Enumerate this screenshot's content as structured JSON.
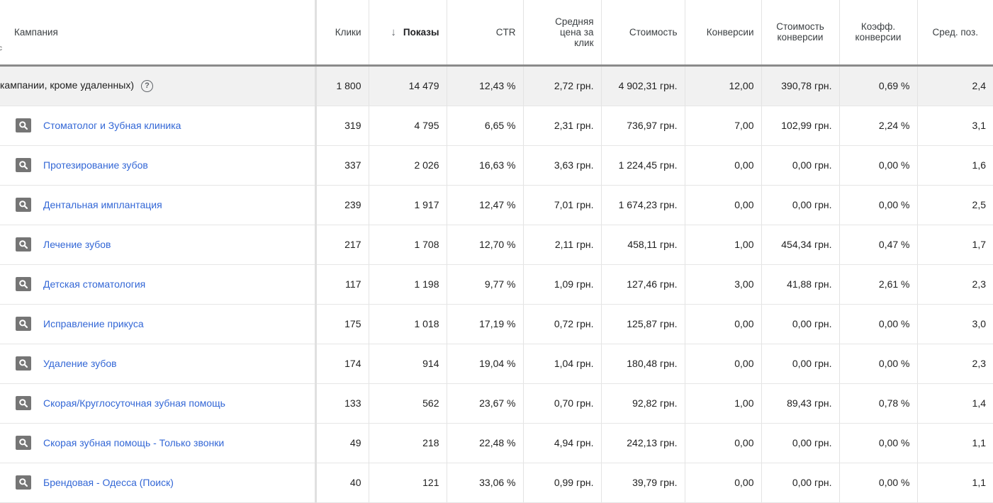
{
  "header": {
    "campaign": "Кампания",
    "clicks": "Клики",
    "impressions": "Показы",
    "ctr": "CTR",
    "avg_cpc": [
      "Средняя",
      "цена за",
      "клик"
    ],
    "cost": "Стоимость",
    "conversions": "Конверсии",
    "cost_per_conv": [
      "Стоимость",
      "конверсии"
    ],
    "conv_rate": [
      "Коэфф.",
      "конверсии"
    ],
    "avg_pos": "Сред. поз.",
    "sort_icon": "arrow-down-icon"
  },
  "total": {
    "label": "кампании, кроме удаленных)",
    "help_icon": "help-circle-icon",
    "clicks": "1 800",
    "impressions": "14 479",
    "ctr": "12,43 %",
    "avg_cpc": "2,72 грн.",
    "cost": "4 902,31 грн.",
    "conversions": "12,00",
    "cost_per_conv": "390,78 грн.",
    "conv_rate": "0,69 %",
    "avg_pos": "2,4"
  },
  "rows": [
    {
      "name": "Стоматолог и Зубная клиника",
      "clicks": "319",
      "impressions": "4 795",
      "ctr": "6,65 %",
      "avg_cpc": "2,31 грн.",
      "cost": "736,97 грн.",
      "conversions": "7,00",
      "cost_per_conv": "102,99 грн.",
      "conv_rate": "2,24 %",
      "avg_pos": "3,1"
    },
    {
      "name": "Протезирование зубов",
      "clicks": "337",
      "impressions": "2 026",
      "ctr": "16,63 %",
      "avg_cpc": "3,63 грн.",
      "cost": "1 224,45 грн.",
      "conversions": "0,00",
      "cost_per_conv": "0,00 грн.",
      "conv_rate": "0,00 %",
      "avg_pos": "1,6"
    },
    {
      "name": "Дентальная имплантация",
      "clicks": "239",
      "impressions": "1 917",
      "ctr": "12,47 %",
      "avg_cpc": "7,01 грн.",
      "cost": "1 674,23 грн.",
      "conversions": "0,00",
      "cost_per_conv": "0,00 грн.",
      "conv_rate": "0,00 %",
      "avg_pos": "2,5"
    },
    {
      "name": "Лечение зубов",
      "clicks": "217",
      "impressions": "1 708",
      "ctr": "12,70 %",
      "avg_cpc": "2,11 грн.",
      "cost": "458,11 грн.",
      "conversions": "1,00",
      "cost_per_conv": "454,34 грн.",
      "conv_rate": "0,47 %",
      "avg_pos": "1,7"
    },
    {
      "name": "Детская стоматология",
      "clicks": "117",
      "impressions": "1 198",
      "ctr": "9,77 %",
      "avg_cpc": "1,09 грн.",
      "cost": "127,46 грн.",
      "conversions": "3,00",
      "cost_per_conv": "41,88 грн.",
      "conv_rate": "2,61 %",
      "avg_pos": "2,3"
    },
    {
      "name": "Исправление прикуса",
      "clicks": "175",
      "impressions": "1 018",
      "ctr": "17,19 %",
      "avg_cpc": "0,72 грн.",
      "cost": "125,87 грн.",
      "conversions": "0,00",
      "cost_per_conv": "0,00 грн.",
      "conv_rate": "0,00 %",
      "avg_pos": "3,0"
    },
    {
      "name": "Удаление зубов",
      "clicks": "174",
      "impressions": "914",
      "ctr": "19,04 %",
      "avg_cpc": "1,04 грн.",
      "cost": "180,48 грн.",
      "conversions": "0,00",
      "cost_per_conv": "0,00 грн.",
      "conv_rate": "0,00 %",
      "avg_pos": "2,3"
    },
    {
      "name": "Скорая/Круглосуточная зубная помощь",
      "clicks": "133",
      "impressions": "562",
      "ctr": "23,67 %",
      "avg_cpc": "0,70 грн.",
      "cost": "92,82 грн.",
      "conversions": "1,00",
      "cost_per_conv": "89,43 грн.",
      "conv_rate": "0,78 %",
      "avg_pos": "1,4"
    },
    {
      "name": "Скорая зубная помощь - Только звонки",
      "clicks": "49",
      "impressions": "218",
      "ctr": "22,48 %",
      "avg_cpc": "4,94 грн.",
      "cost": "242,13 грн.",
      "conversions": "0,00",
      "cost_per_conv": "0,00 грн.",
      "conv_rate": "0,00 %",
      "avg_pos": "1,1"
    },
    {
      "name": "Брендовая - Одесса (Поиск)",
      "clicks": "40",
      "impressions": "121",
      "ctr": "33,06 %",
      "avg_cpc": "0,99 грн.",
      "cost": "39,79 грн.",
      "conversions": "0,00",
      "cost_per_conv": "0,00 грн.",
      "conv_rate": "0,00 %",
      "avg_pos": "1,1"
    }
  ],
  "row_icon": "search-campaign-icon"
}
